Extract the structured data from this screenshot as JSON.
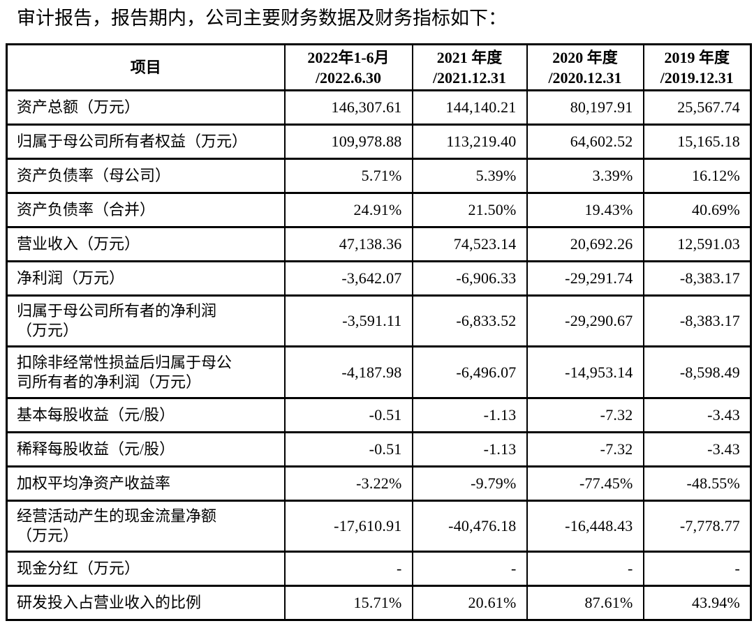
{
  "title": "审计报告，报告期内，公司主要财务数据及财务指标如下：",
  "table": {
    "header": {
      "item_label": "项目",
      "periods": [
        {
          "line1": "2022年1-6月",
          "line2": "/2022.6.30"
        },
        {
          "line1": "2021 年度",
          "line2": "/2021.12.31"
        },
        {
          "line1": "2020 年度",
          "line2": "/2020.12.31"
        },
        {
          "line1": "2019 年度",
          "line2": "/2019.12.31"
        }
      ]
    },
    "rows": [
      {
        "label_lines": [
          "资产总额（万元）"
        ],
        "values": [
          "146,307.61",
          "144,140.21",
          "80,197.91",
          "25,567.74"
        ]
      },
      {
        "label_lines": [
          "归属于母公司所有者权益（万元）"
        ],
        "values": [
          "109,978.88",
          "113,219.40",
          "64,602.52",
          "15,165.18"
        ]
      },
      {
        "label_lines": [
          "资产负债率（母公司）"
        ],
        "values": [
          "5.71%",
          "5.39%",
          "3.39%",
          "16.12%"
        ]
      },
      {
        "label_lines": [
          "资产负债率（合并）"
        ],
        "values": [
          "24.91%",
          "21.50%",
          "19.43%",
          "40.69%"
        ]
      },
      {
        "label_lines": [
          "营业收入（万元）"
        ],
        "values": [
          "47,138.36",
          "74,523.14",
          "20,692.26",
          "12,591.03"
        ]
      },
      {
        "label_lines": [
          "净利润（万元）"
        ],
        "values": [
          "-3,642.07",
          "-6,906.33",
          "-29,291.74",
          "-8,383.17"
        ]
      },
      {
        "label_lines": [
          "归属于母公司所有者的净利润",
          "（万元）"
        ],
        "values": [
          "-3,591.11",
          "-6,833.52",
          "-29,290.67",
          "-8,383.17"
        ]
      },
      {
        "label_lines": [
          "扣除非经常性损益后归属于母公",
          "司所有者的净利润（万元）"
        ],
        "values": [
          "-4,187.98",
          "-6,496.07",
          "-14,953.14",
          "-8,598.49"
        ]
      },
      {
        "label_lines": [
          "基本每股收益（元/股）"
        ],
        "values": [
          "-0.51",
          "-1.13",
          "-7.32",
          "-3.43"
        ]
      },
      {
        "label_lines": [
          "稀释每股收益（元/股）"
        ],
        "values": [
          "-0.51",
          "-1.13",
          "-7.32",
          "-3.43"
        ]
      },
      {
        "label_lines": [
          "加权平均净资产收益率"
        ],
        "values": [
          "-3.22%",
          "-9.79%",
          "-77.45%",
          "-48.55%"
        ]
      },
      {
        "label_lines": [
          "经营活动产生的现金流量净额",
          "（万元）"
        ],
        "values": [
          "-17,610.91",
          "-40,476.18",
          "-16,448.43",
          "-7,778.77"
        ]
      },
      {
        "label_lines": [
          "现金分红（万元）"
        ],
        "values": [
          "-",
          "-",
          "-",
          "-"
        ]
      },
      {
        "label_lines": [
          "研发投入占营业收入的比例"
        ],
        "values": [
          "15.71%",
          "20.61%",
          "87.61%",
          "43.94%"
        ]
      }
    ]
  },
  "colors": {
    "text": "#000000",
    "border": "#000000",
    "background": "#ffffff"
  }
}
